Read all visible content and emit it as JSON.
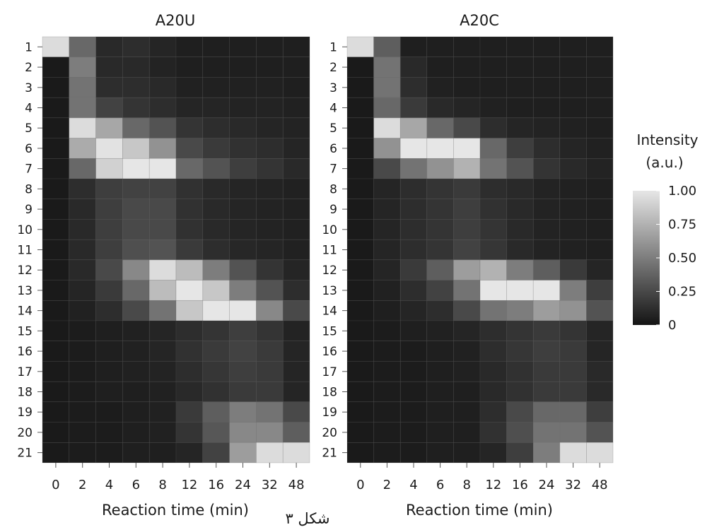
{
  "figure": {
    "caption": "شکل ۳"
  },
  "chart_data": [
    {
      "type": "heatmap",
      "title": "A20U",
      "xlabel": "Reaction time (min)",
      "ylabel": "",
      "x": [
        "0",
        "2",
        "4",
        "6",
        "8",
        "12",
        "16",
        "24",
        "32",
        "48"
      ],
      "y": [
        "1",
        "2",
        "3",
        "4",
        "5",
        "6",
        "7",
        "8",
        "9",
        "10",
        "11",
        "12",
        "13",
        "14",
        "15",
        "16",
        "17",
        "18",
        "19",
        "20",
        "21"
      ],
      "values": [
        [
          0.95,
          0.4,
          0.1,
          0.12,
          0.08,
          0.05,
          0.05,
          0.05,
          0.05,
          0.05
        ],
        [
          0.03,
          0.5,
          0.1,
          0.1,
          0.07,
          0.05,
          0.05,
          0.05,
          0.05,
          0.05
        ],
        [
          0.03,
          0.45,
          0.12,
          0.12,
          0.1,
          0.06,
          0.06,
          0.06,
          0.06,
          0.05
        ],
        [
          0.03,
          0.45,
          0.22,
          0.15,
          0.12,
          0.08,
          0.08,
          0.07,
          0.07,
          0.06
        ],
        [
          0.03,
          0.95,
          0.7,
          0.4,
          0.3,
          0.15,
          0.12,
          0.1,
          0.08,
          0.07
        ],
        [
          0.03,
          0.72,
          0.98,
          0.85,
          0.6,
          0.25,
          0.18,
          0.14,
          0.12,
          0.08
        ],
        [
          0.03,
          0.4,
          0.9,
          1.0,
          1.0,
          0.4,
          0.3,
          0.2,
          0.15,
          0.1
        ],
        [
          0.03,
          0.12,
          0.2,
          0.22,
          0.22,
          0.14,
          0.1,
          0.08,
          0.07,
          0.06
        ],
        [
          0.03,
          0.1,
          0.2,
          0.25,
          0.25,
          0.14,
          0.1,
          0.08,
          0.07,
          0.06
        ],
        [
          0.03,
          0.1,
          0.2,
          0.25,
          0.25,
          0.14,
          0.1,
          0.08,
          0.07,
          0.06
        ],
        [
          0.03,
          0.1,
          0.2,
          0.28,
          0.3,
          0.18,
          0.12,
          0.09,
          0.08,
          0.06
        ],
        [
          0.03,
          0.1,
          0.25,
          0.55,
          0.95,
          0.8,
          0.5,
          0.3,
          0.15,
          0.08
        ],
        [
          0.03,
          0.08,
          0.18,
          0.4,
          0.8,
          1.0,
          0.85,
          0.5,
          0.3,
          0.12
        ],
        [
          0.03,
          0.06,
          0.12,
          0.25,
          0.45,
          0.85,
          1.0,
          1.0,
          0.55,
          0.25
        ],
        [
          0.03,
          0.04,
          0.05,
          0.06,
          0.08,
          0.12,
          0.15,
          0.2,
          0.15,
          0.07
        ],
        [
          0.03,
          0.04,
          0.05,
          0.06,
          0.08,
          0.14,
          0.18,
          0.22,
          0.18,
          0.08
        ],
        [
          0.03,
          0.04,
          0.05,
          0.06,
          0.07,
          0.12,
          0.16,
          0.2,
          0.18,
          0.08
        ],
        [
          0.03,
          0.04,
          0.05,
          0.05,
          0.06,
          0.1,
          0.14,
          0.18,
          0.18,
          0.08
        ],
        [
          0.03,
          0.04,
          0.04,
          0.05,
          0.06,
          0.18,
          0.35,
          0.5,
          0.45,
          0.25
        ],
        [
          0.03,
          0.04,
          0.04,
          0.05,
          0.06,
          0.15,
          0.32,
          0.55,
          0.55,
          0.35
        ],
        [
          0.03,
          0.04,
          0.04,
          0.05,
          0.05,
          0.08,
          0.22,
          0.65,
          0.95,
          0.95
        ]
      ]
    },
    {
      "type": "heatmap",
      "title": "A20C",
      "xlabel": "Reaction time (min)",
      "ylabel": "",
      "x": [
        "0",
        "2",
        "4",
        "6",
        "8",
        "12",
        "16",
        "24",
        "32",
        "48"
      ],
      "y": [
        "1",
        "2",
        "3",
        "4",
        "5",
        "6",
        "7",
        "8",
        "9",
        "10",
        "11",
        "12",
        "13",
        "14",
        "15",
        "16",
        "17",
        "18",
        "19",
        "20",
        "21"
      ],
      "values": [
        [
          0.95,
          0.35,
          0.05,
          0.05,
          0.05,
          0.05,
          0.05,
          0.05,
          0.05,
          0.05
        ],
        [
          0.03,
          0.45,
          0.1,
          0.05,
          0.05,
          0.05,
          0.05,
          0.05,
          0.05,
          0.05
        ],
        [
          0.03,
          0.45,
          0.12,
          0.06,
          0.05,
          0.05,
          0.05,
          0.05,
          0.05,
          0.05
        ],
        [
          0.03,
          0.4,
          0.18,
          0.1,
          0.08,
          0.06,
          0.05,
          0.05,
          0.05,
          0.05
        ],
        [
          0.03,
          0.95,
          0.7,
          0.4,
          0.25,
          0.12,
          0.08,
          0.07,
          0.06,
          0.05
        ],
        [
          0.03,
          0.6,
          1.0,
          1.0,
          1.0,
          0.4,
          0.2,
          0.12,
          0.08,
          0.06
        ],
        [
          0.03,
          0.25,
          0.45,
          0.6,
          0.75,
          0.45,
          0.3,
          0.15,
          0.1,
          0.07
        ],
        [
          0.03,
          0.08,
          0.12,
          0.15,
          0.18,
          0.12,
          0.1,
          0.07,
          0.06,
          0.05
        ],
        [
          0.03,
          0.08,
          0.12,
          0.15,
          0.2,
          0.14,
          0.1,
          0.07,
          0.06,
          0.05
        ],
        [
          0.03,
          0.08,
          0.12,
          0.15,
          0.2,
          0.15,
          0.1,
          0.07,
          0.06,
          0.05
        ],
        [
          0.03,
          0.08,
          0.12,
          0.15,
          0.22,
          0.16,
          0.1,
          0.07,
          0.06,
          0.05
        ],
        [
          0.03,
          0.08,
          0.18,
          0.35,
          0.65,
          0.75,
          0.5,
          0.35,
          0.18,
          0.08
        ],
        [
          0.03,
          0.06,
          0.12,
          0.22,
          0.45,
          1.0,
          1.0,
          1.0,
          0.5,
          0.2
        ],
        [
          0.03,
          0.05,
          0.08,
          0.12,
          0.25,
          0.45,
          0.5,
          0.65,
          0.6,
          0.3
        ],
        [
          0.03,
          0.04,
          0.05,
          0.06,
          0.08,
          0.12,
          0.15,
          0.18,
          0.15,
          0.08
        ],
        [
          0.03,
          0.04,
          0.04,
          0.05,
          0.06,
          0.12,
          0.16,
          0.2,
          0.18,
          0.08
        ],
        [
          0.03,
          0.04,
          0.04,
          0.05,
          0.06,
          0.1,
          0.14,
          0.18,
          0.18,
          0.1
        ],
        [
          0.03,
          0.04,
          0.04,
          0.05,
          0.05,
          0.1,
          0.14,
          0.18,
          0.18,
          0.1
        ],
        [
          0.03,
          0.04,
          0.04,
          0.05,
          0.05,
          0.12,
          0.25,
          0.4,
          0.4,
          0.2
        ],
        [
          0.03,
          0.04,
          0.04,
          0.05,
          0.05,
          0.14,
          0.28,
          0.45,
          0.45,
          0.3
        ],
        [
          0.03,
          0.04,
          0.04,
          0.05,
          0.05,
          0.08,
          0.2,
          0.5,
          0.95,
          0.95
        ]
      ]
    }
  ],
  "colorbar": {
    "title_line1": "Intensity",
    "title_line2": "(a.u.)",
    "ticks": [
      {
        "value": 1.0,
        "label": "1.00"
      },
      {
        "value": 0.75,
        "label": "0.75"
      },
      {
        "value": 0.5,
        "label": "0.50"
      },
      {
        "value": 0.25,
        "label": "0.25"
      },
      {
        "value": 0.0,
        "label": "0"
      }
    ],
    "range": [
      0,
      1
    ],
    "color_low": "#141414",
    "color_high": "#e6e6e6"
  }
}
